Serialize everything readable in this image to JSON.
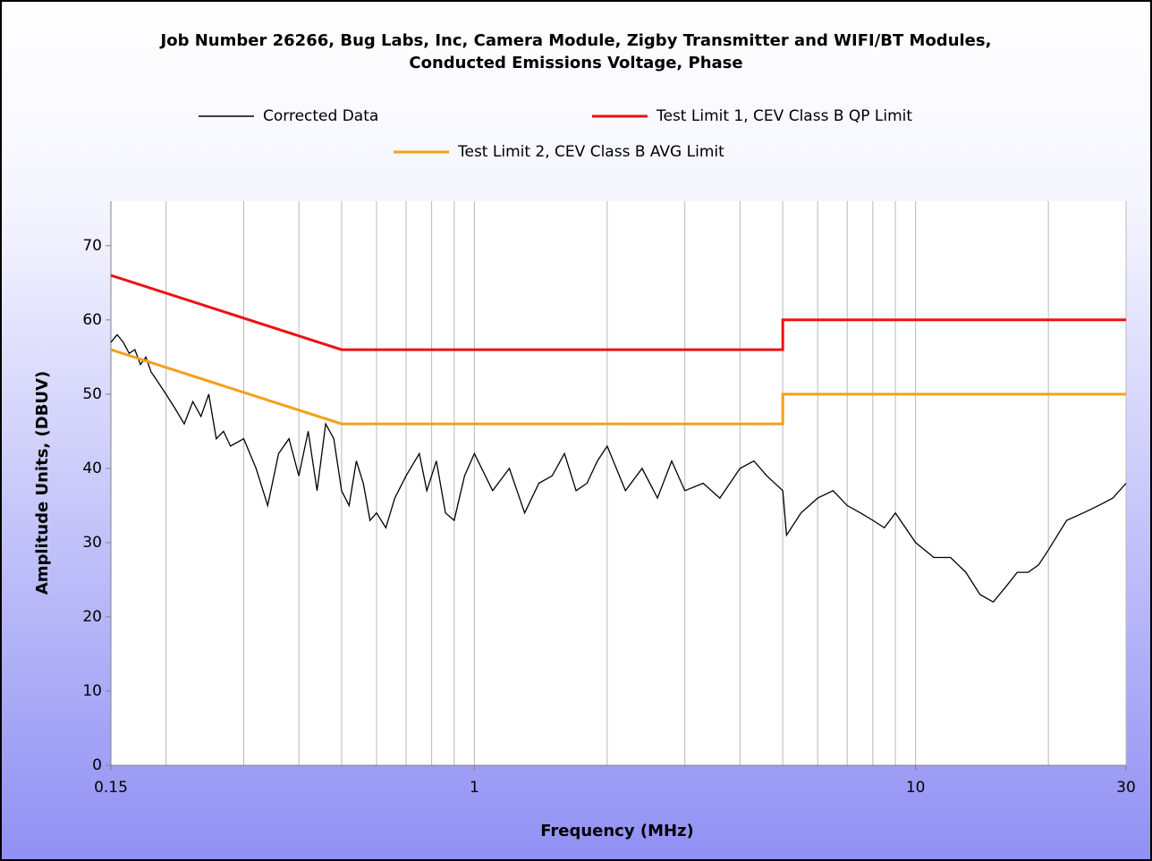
{
  "chart_data": {
    "type": "line",
    "title": [
      "Job Number 26266, Bug Labs, Inc, Camera Module, Zigby Transmitter and WIFI/BT Modules,",
      "Conducted Emissions Voltage, Phase"
    ],
    "xlabel": "Frequency (MHz)",
    "ylabel": "Amplitude Units, (DBUV)",
    "xscale": "log",
    "xlim": [
      0.15,
      30
    ],
    "ylim": [
      0,
      76
    ],
    "xticks": [
      0.15,
      1,
      10,
      30
    ],
    "yticks": [
      0,
      10,
      20,
      30,
      40,
      50,
      60,
      70
    ],
    "xgrid": [
      0.2,
      0.3,
      0.4,
      0.5,
      0.6,
      0.7,
      0.8,
      0.9,
      1,
      2,
      3,
      4,
      5,
      6,
      7,
      8,
      9,
      10,
      20,
      30
    ],
    "series": [
      {
        "name": "Corrected Data",
        "color": "#000000",
        "x": [
          0.15,
          0.155,
          0.16,
          0.165,
          0.17,
          0.175,
          0.18,
          0.185,
          0.19,
          0.2,
          0.21,
          0.22,
          0.23,
          0.24,
          0.25,
          0.26,
          0.27,
          0.28,
          0.3,
          0.32,
          0.34,
          0.36,
          0.38,
          0.4,
          0.42,
          0.44,
          0.46,
          0.48,
          0.5,
          0.52,
          0.54,
          0.56,
          0.58,
          0.6,
          0.63,
          0.66,
          0.7,
          0.75,
          0.78,
          0.82,
          0.86,
          0.9,
          0.95,
          1.0,
          1.1,
          1.2,
          1.3,
          1.4,
          1.5,
          1.6,
          1.7,
          1.8,
          1.9,
          2.0,
          2.2,
          2.4,
          2.6,
          2.8,
          3.0,
          3.3,
          3.6,
          4.0,
          4.3,
          4.6,
          5.0,
          5.1,
          5.5,
          6,
          6.5,
          7,
          7.5,
          8,
          8.5,
          9,
          10,
          11,
          12,
          13,
          14,
          15,
          16,
          17,
          18,
          19,
          20,
          22,
          24,
          26,
          28,
          30
        ],
        "values": [
          57,
          58,
          57,
          55.5,
          56,
          54,
          55,
          53,
          52,
          50,
          48,
          46,
          49,
          47,
          50,
          44,
          45,
          43,
          44,
          40,
          35,
          42,
          44,
          39,
          45,
          37,
          46,
          44,
          37,
          35,
          41,
          38,
          33,
          34,
          32,
          36,
          39,
          42,
          37,
          41,
          34,
          33,
          39,
          42,
          37,
          40,
          34,
          38,
          39,
          42,
          37,
          38,
          41,
          43,
          37,
          40,
          36,
          41,
          37,
          38,
          36,
          40,
          41,
          39,
          37,
          31,
          34,
          36,
          37,
          35,
          34,
          33,
          32,
          34,
          30,
          28,
          28,
          26,
          23,
          22,
          24,
          26,
          26,
          27,
          29,
          33,
          34,
          35,
          36,
          38
        ]
      },
      {
        "name": "Test Limit 1, CEV Class B QP Limit",
        "color": "#ee1111",
        "x": [
          0.15,
          0.5,
          5,
          5,
          30
        ],
        "values": [
          66,
          56,
          56,
          60,
          60
        ]
      },
      {
        "name": "Test Limit 2, CEV Class B AVG Limit",
        "color": "#f5a01a",
        "x": [
          0.15,
          0.5,
          5,
          5,
          30
        ],
        "values": [
          56,
          46,
          46,
          50,
          50
        ]
      }
    ]
  }
}
